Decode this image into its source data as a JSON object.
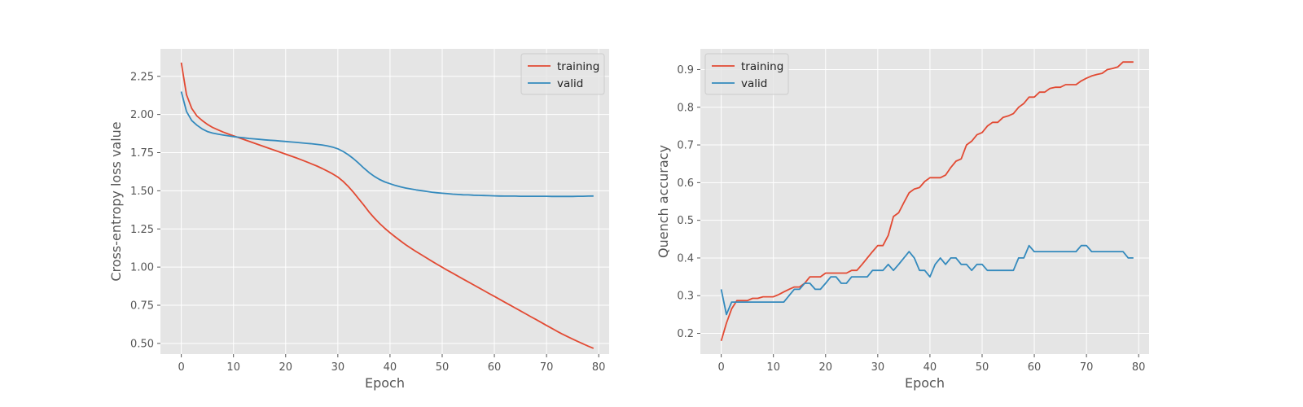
{
  "colors": {
    "training": "#E24A33",
    "valid": "#348ABD",
    "panel_bg": "#E5E5E5",
    "grid": "#FFFFFF",
    "legend_bg": "#E5E5E5",
    "text": "#555555"
  },
  "chart_data": [
    {
      "type": "line",
      "xlabel": "Epoch",
      "ylabel": "Cross-entropy loss value",
      "xlim": [
        -4,
        82
      ],
      "ylim": [
        0.43,
        2.43
      ],
      "xticks": [
        0,
        10,
        20,
        30,
        40,
        50,
        60,
        70,
        80
      ],
      "yticks": [
        0.5,
        0.75,
        1.0,
        1.25,
        1.5,
        1.75,
        2.0,
        2.25
      ],
      "ytick_labels": [
        "0.50",
        "0.75",
        "1.00",
        "1.25",
        "1.50",
        "1.75",
        "2.00",
        "2.25"
      ],
      "grid": true,
      "legend_position": "top-right",
      "series": [
        {
          "name": "training",
          "x": [
            0,
            1,
            2,
            3,
            4,
            5,
            6,
            7,
            8,
            9,
            10,
            11,
            12,
            13,
            14,
            15,
            16,
            17,
            18,
            19,
            20,
            21,
            22,
            23,
            24,
            25,
            26,
            27,
            28,
            29,
            30,
            31,
            32,
            33,
            34,
            35,
            36,
            37,
            38,
            39,
            40,
            41,
            42,
            43,
            44,
            45,
            46,
            47,
            48,
            49,
            50,
            51,
            52,
            53,
            54,
            55,
            56,
            57,
            58,
            59,
            60,
            61,
            62,
            63,
            64,
            65,
            66,
            67,
            68,
            69,
            70,
            71,
            72,
            73,
            74,
            75,
            76,
            77,
            78,
            79
          ],
          "y": [
            2.34,
            2.13,
            2.04,
            1.99,
            1.96,
            1.935,
            1.915,
            1.9,
            1.885,
            1.872,
            1.86,
            1.848,
            1.836,
            1.824,
            1.812,
            1.8,
            1.788,
            1.776,
            1.764,
            1.752,
            1.74,
            1.728,
            1.716,
            1.703,
            1.69,
            1.676,
            1.662,
            1.646,
            1.629,
            1.611,
            1.59,
            1.562,
            1.528,
            1.49,
            1.447,
            1.405,
            1.36,
            1.321,
            1.286,
            1.254,
            1.225,
            1.198,
            1.172,
            1.147,
            1.124,
            1.102,
            1.081,
            1.06,
            1.039,
            1.019,
            0.999,
            0.979,
            0.96,
            0.941,
            0.922,
            0.903,
            0.884,
            0.865,
            0.846,
            0.827,
            0.808,
            0.789,
            0.77,
            0.751,
            0.732,
            0.713,
            0.694,
            0.675,
            0.656,
            0.637,
            0.618,
            0.599,
            0.58,
            0.562,
            0.545,
            0.528,
            0.512,
            0.497,
            0.482,
            0.468
          ]
        },
        {
          "name": "valid",
          "x": [
            0,
            1,
            2,
            3,
            4,
            5,
            6,
            7,
            8,
            9,
            10,
            11,
            12,
            13,
            14,
            15,
            16,
            17,
            18,
            19,
            20,
            21,
            22,
            23,
            24,
            25,
            26,
            27,
            28,
            29,
            30,
            31,
            32,
            33,
            34,
            35,
            36,
            37,
            38,
            39,
            40,
            41,
            42,
            43,
            44,
            45,
            46,
            47,
            48,
            49,
            50,
            51,
            52,
            53,
            54,
            55,
            56,
            57,
            58,
            59,
            60,
            61,
            62,
            63,
            64,
            65,
            66,
            67,
            68,
            69,
            70,
            71,
            72,
            73,
            74,
            75,
            76,
            77,
            78,
            79
          ],
          "y": [
            2.15,
            2.02,
            1.96,
            1.93,
            1.905,
            1.888,
            1.878,
            1.871,
            1.865,
            1.86,
            1.855,
            1.851,
            1.847,
            1.843,
            1.84,
            1.837,
            1.834,
            1.831,
            1.829,
            1.826,
            1.823,
            1.82,
            1.817,
            1.814,
            1.811,
            1.808,
            1.804,
            1.8,
            1.794,
            1.786,
            1.775,
            1.758,
            1.736,
            1.71,
            1.68,
            1.648,
            1.619,
            1.594,
            1.574,
            1.558,
            1.546,
            1.535,
            1.526,
            1.518,
            1.512,
            1.506,
            1.501,
            1.496,
            1.491,
            1.487,
            1.484,
            1.481,
            1.478,
            1.476,
            1.474,
            1.473,
            1.471,
            1.47,
            1.469,
            1.468,
            1.467,
            1.466,
            1.465,
            1.465,
            1.465,
            1.464,
            1.464,
            1.464,
            1.464,
            1.464,
            1.464,
            1.463,
            1.463,
            1.463,
            1.463,
            1.463,
            1.464,
            1.464,
            1.465,
            1.466
          ]
        }
      ]
    },
    {
      "type": "line",
      "xlabel": "Epoch",
      "ylabel": "Quench accuracy",
      "xlim": [
        -4,
        82
      ],
      "ylim": [
        0.145,
        0.955
      ],
      "xticks": [
        0,
        10,
        20,
        30,
        40,
        50,
        60,
        70,
        80
      ],
      "yticks": [
        0.2,
        0.3,
        0.4,
        0.5,
        0.6,
        0.7,
        0.8,
        0.9
      ],
      "ytick_labels": [
        "0.2",
        "0.3",
        "0.4",
        "0.5",
        "0.6",
        "0.7",
        "0.8",
        "0.9"
      ],
      "grid": true,
      "legend_position": "top-left",
      "series": [
        {
          "name": "training",
          "x": [
            0,
            1,
            2,
            3,
            4,
            5,
            6,
            7,
            8,
            9,
            10,
            11,
            12,
            13,
            14,
            15,
            16,
            17,
            18,
            19,
            20,
            21,
            22,
            23,
            24,
            25,
            26,
            27,
            28,
            29,
            30,
            31,
            32,
            33,
            34,
            35,
            36,
            37,
            38,
            39,
            40,
            41,
            42,
            43,
            44,
            45,
            46,
            47,
            48,
            49,
            50,
            51,
            52,
            53,
            54,
            55,
            56,
            57,
            58,
            59,
            60,
            61,
            62,
            63,
            64,
            65,
            66,
            67,
            68,
            69,
            70,
            71,
            72,
            73,
            74,
            75,
            76,
            77,
            78,
            79
          ],
          "y": [
            0.18,
            0.227,
            0.265,
            0.287,
            0.287,
            0.287,
            0.293,
            0.293,
            0.297,
            0.297,
            0.297,
            0.303,
            0.31,
            0.317,
            0.323,
            0.323,
            0.333,
            0.35,
            0.35,
            0.35,
            0.36,
            0.36,
            0.36,
            0.36,
            0.36,
            0.367,
            0.367,
            0.383,
            0.4,
            0.417,
            0.433,
            0.433,
            0.46,
            0.51,
            0.52,
            0.547,
            0.573,
            0.583,
            0.587,
            0.603,
            0.613,
            0.613,
            0.613,
            0.62,
            0.64,
            0.657,
            0.663,
            0.7,
            0.71,
            0.727,
            0.733,
            0.75,
            0.76,
            0.76,
            0.773,
            0.777,
            0.783,
            0.8,
            0.81,
            0.827,
            0.827,
            0.84,
            0.84,
            0.85,
            0.853,
            0.853,
            0.86,
            0.86,
            0.86,
            0.87,
            0.877,
            0.883,
            0.887,
            0.89,
            0.9,
            0.903,
            0.907,
            0.92,
            0.92,
            0.92
          ]
        },
        {
          "name": "valid",
          "x": [
            0,
            1,
            2,
            3,
            4,
            5,
            6,
            7,
            8,
            9,
            10,
            11,
            12,
            13,
            14,
            15,
            16,
            17,
            18,
            19,
            20,
            21,
            22,
            23,
            24,
            25,
            26,
            27,
            28,
            29,
            30,
            31,
            32,
            33,
            34,
            35,
            36,
            37,
            38,
            39,
            40,
            41,
            42,
            43,
            44,
            45,
            46,
            47,
            48,
            49,
            50,
            51,
            52,
            53,
            54,
            55,
            56,
            57,
            58,
            59,
            60,
            61,
            62,
            63,
            64,
            65,
            66,
            67,
            68,
            69,
            70,
            71,
            72,
            73,
            74,
            75,
            76,
            77,
            78,
            79
          ],
          "y": [
            0.317,
            0.25,
            0.283,
            0.283,
            0.283,
            0.283,
            0.283,
            0.283,
            0.283,
            0.283,
            0.283,
            0.283,
            0.283,
            0.3,
            0.317,
            0.317,
            0.333,
            0.333,
            0.317,
            0.317,
            0.333,
            0.35,
            0.35,
            0.333,
            0.333,
            0.35,
            0.35,
            0.35,
            0.35,
            0.367,
            0.367,
            0.367,
            0.383,
            0.367,
            0.383,
            0.4,
            0.417,
            0.4,
            0.367,
            0.367,
            0.35,
            0.383,
            0.4,
            0.383,
            0.4,
            0.4,
            0.383,
            0.383,
            0.367,
            0.383,
            0.383,
            0.367,
            0.367,
            0.367,
            0.367,
            0.367,
            0.367,
            0.4,
            0.4,
            0.433,
            0.417,
            0.417,
            0.417,
            0.417,
            0.417,
            0.417,
            0.417,
            0.417,
            0.417,
            0.433,
            0.433,
            0.417,
            0.417,
            0.417,
            0.417,
            0.417,
            0.417,
            0.417,
            0.4,
            0.4
          ]
        }
      ]
    }
  ]
}
